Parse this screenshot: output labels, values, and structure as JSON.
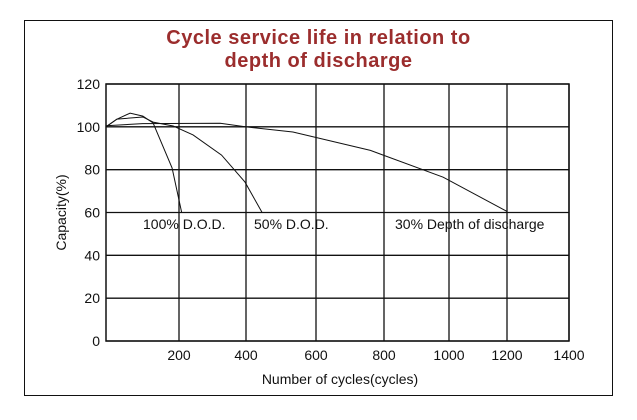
{
  "chart_data": {
    "type": "line",
    "title": [
      "Cycle service life in relation to",
      "depth of discharge"
    ],
    "xlabel": "Number of cycles(cycles)",
    "ylabel": "Capacity(%)",
    "xlim": [
      0,
      1400
    ],
    "ylim": [
      0,
      120
    ],
    "xticks": [
      200,
      400,
      600,
      800,
      1000,
      1200,
      1400
    ],
    "yticks": [
      0,
      20,
      40,
      60,
      80,
      100,
      120
    ],
    "grid": true,
    "series": [
      {
        "name": "100% D.O.D.",
        "points": [
          [
            0,
            100
          ],
          [
            30,
            103.6
          ],
          [
            66,
            106.4
          ],
          [
            101,
            105
          ],
          [
            129,
            101.8
          ],
          [
            181,
            80.8
          ],
          [
            208,
            60
          ]
        ]
      },
      {
        "name": "50% D.O.D.",
        "points": [
          [
            0,
            100
          ],
          [
            30,
            103.6
          ],
          [
            101,
            104.6
          ],
          [
            129,
            102.2
          ],
          [
            184,
            100.4
          ],
          [
            242,
            96.2
          ],
          [
            327,
            86.8
          ],
          [
            397,
            74.2
          ],
          [
            446,
            60
          ]
        ]
      },
      {
        "name": "30% Depth of discharge",
        "points": [
          [
            0,
            100.5
          ],
          [
            100,
            101.5
          ],
          [
            323,
            101.7
          ],
          [
            400,
            100
          ],
          [
            534,
            97.6
          ],
          [
            760,
            89
          ],
          [
            982,
            76.5
          ],
          [
            1200,
            60.5
          ]
        ]
      }
    ]
  }
}
